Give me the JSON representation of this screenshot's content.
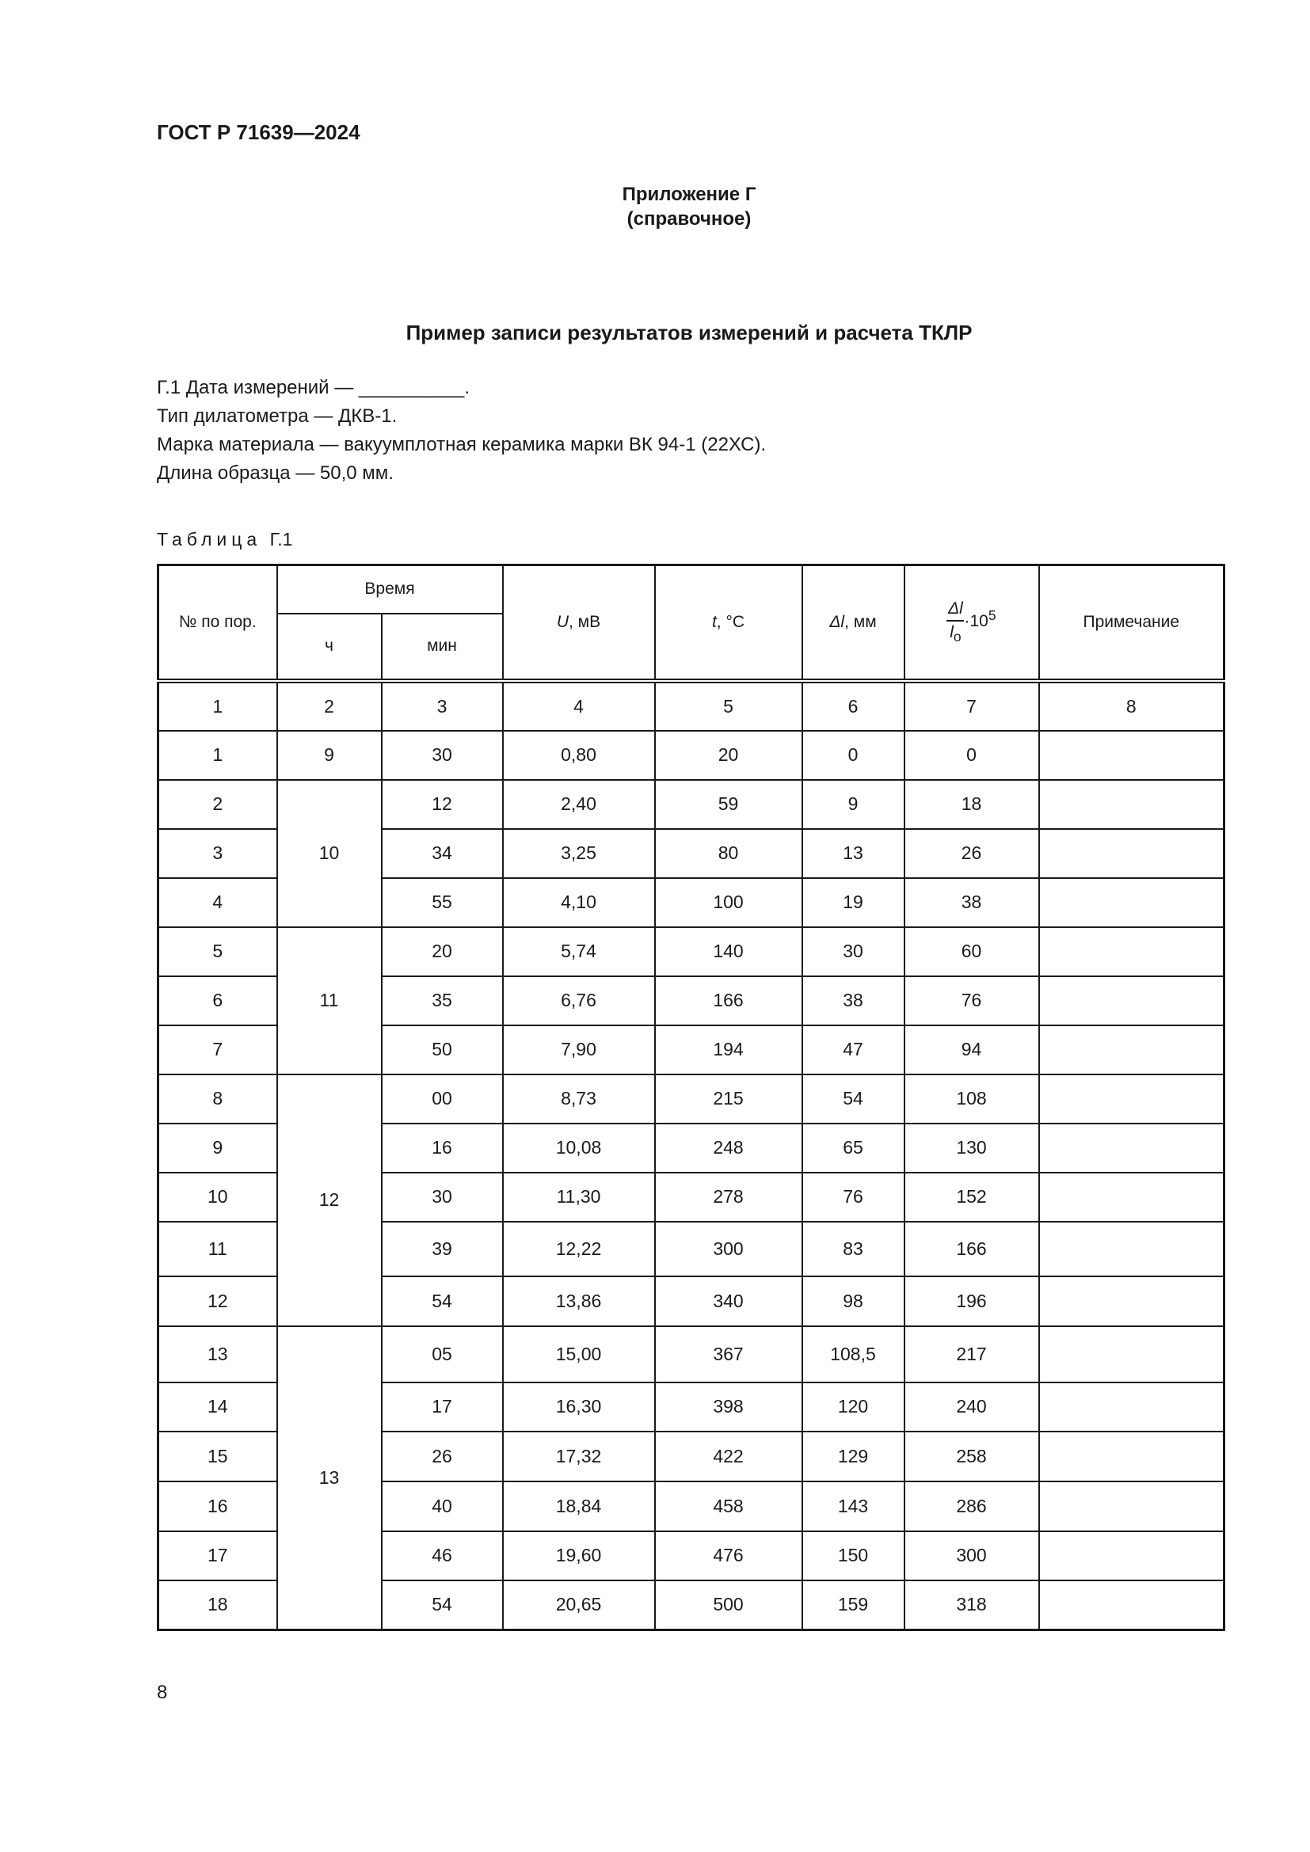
{
  "header": {
    "doc_code": "ГОСТ Р 71639—2024"
  },
  "appendix": {
    "title": "Приложение Г",
    "subtitle": "(справочное)"
  },
  "main_title": "Пример записи результатов измерений и расчета ТКЛР",
  "paragraphs": [
    "Г.1  Дата измерений — __________.",
    "Тип дилатометра — ДКВ-1.",
    "Марка материала — вакуумплотная керамика марки ВК 94-1 (22ХС).",
    "Длина образца — 50,0 мм."
  ],
  "table": {
    "caption_word": "Таблица",
    "caption_num": "Г.1",
    "headers": {
      "num": "№ по пор.",
      "time": "Время",
      "hours": "ч",
      "minutes": "мин",
      "u_sym": "U",
      "u_unit": ", мВ",
      "t_sym": "t",
      "t_unit": ", °С",
      "dl_sym": "Δl",
      "dl_unit": ", мм",
      "ratio_num": "Δl",
      "ratio_den": "l",
      "ratio_den_sub": "о",
      "ratio_mult": "·10",
      "ratio_exp": "5",
      "note": "Примечание"
    },
    "column_numbers": [
      "1",
      "2",
      "3",
      "4",
      "5",
      "6",
      "7",
      "8"
    ],
    "rows": [
      {
        "n": "1",
        "h": "9",
        "m": "30",
        "u": "0,80",
        "t": "20",
        "dl": "0",
        "r": "0",
        "note": ""
      },
      {
        "n": "2",
        "h": "10",
        "m": "12",
        "u": "2,40",
        "t": "59",
        "dl": "9",
        "r": "18",
        "note": ""
      },
      {
        "n": "3",
        "h": "10",
        "m": "34",
        "u": "3,25",
        "t": "80",
        "dl": "13",
        "r": "26",
        "note": ""
      },
      {
        "n": "4",
        "h": "10",
        "m": "55",
        "u": "4,10",
        "t": "100",
        "dl": "19",
        "r": "38",
        "note": ""
      },
      {
        "n": "5",
        "h": "11",
        "m": "20",
        "u": "5,74",
        "t": "140",
        "dl": "30",
        "r": "60",
        "note": ""
      },
      {
        "n": "6",
        "h": "11",
        "m": "35",
        "u": "6,76",
        "t": "166",
        "dl": "38",
        "r": "76",
        "note": ""
      },
      {
        "n": "7",
        "h": "11",
        "m": "50",
        "u": "7,90",
        "t": "194",
        "dl": "47",
        "r": "94",
        "note": ""
      },
      {
        "n": "8",
        "h": "12",
        "m": "00",
        "u": "8,73",
        "t": "215",
        "dl": "54",
        "r": "108",
        "note": ""
      },
      {
        "n": "9",
        "h": "12",
        "m": "16",
        "u": "10,08",
        "t": "248",
        "dl": "65",
        "r": "130",
        "note": ""
      },
      {
        "n": "10",
        "h": "12",
        "m": "30",
        "u": "11,30",
        "t": "278",
        "dl": "76",
        "r": "152",
        "note": ""
      },
      {
        "n": "11",
        "h": "12",
        "m": "39",
        "u": "12,22",
        "t": "300",
        "dl": "83",
        "r": "166",
        "note": ""
      },
      {
        "n": "12",
        "h": "12",
        "m": "54",
        "u": "13,86",
        "t": "340",
        "dl": "98",
        "r": "196",
        "note": ""
      },
      {
        "n": "13",
        "h": "13",
        "m": "05",
        "u": "15,00",
        "t": "367",
        "dl": "108,5",
        "r": "217",
        "note": ""
      },
      {
        "n": "14",
        "h": "13",
        "m": "17",
        "u": "16,30",
        "t": "398",
        "dl": "120",
        "r": "240",
        "note": ""
      },
      {
        "n": "15",
        "h": "13",
        "m": "26",
        "u": "17,32",
        "t": "422",
        "dl": "129",
        "r": "258",
        "note": ""
      },
      {
        "n": "16",
        "h": "13",
        "m": "40",
        "u": "18,84",
        "t": "458",
        "dl": "143",
        "r": "286",
        "note": ""
      },
      {
        "n": "17",
        "h": "13",
        "m": "46",
        "u": "19,60",
        "t": "476",
        "dl": "150",
        "r": "300",
        "note": ""
      },
      {
        "n": "18",
        "h": "13",
        "m": "54",
        "u": "20,65",
        "t": "500",
        "dl": "159",
        "r": "318",
        "note": ""
      }
    ]
  },
  "page_number": "8"
}
